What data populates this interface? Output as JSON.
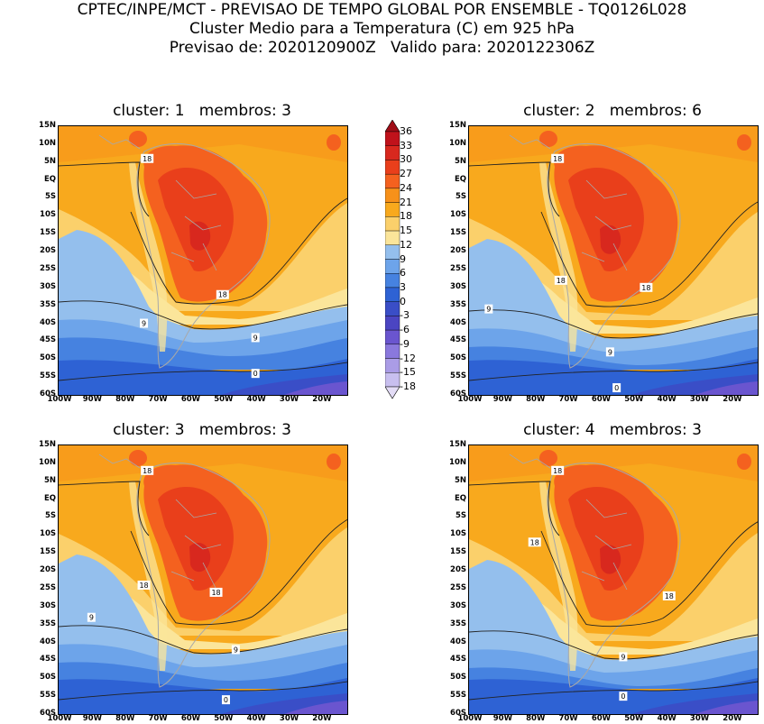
{
  "header": {
    "line1": "CPTEC/INPE/MCT - PREVISAO DE TEMPO GLOBAL POR ENSEMBLE - TQ0126L028",
    "line2": "Cluster Medio para a Temperatura (C) em 925 hPa",
    "line3": "Previsao de: 2020120900Z   Valido para: 2020122306Z"
  },
  "chart_data": [
    {
      "type": "heatmap",
      "title": "cluster: 1   membros: 3",
      "cluster": 1,
      "membros": 3,
      "xticks": [
        "100W",
        "90W",
        "80W",
        "70W",
        "60W",
        "50W",
        "40W",
        "30W",
        "20W"
      ],
      "yticks": [
        "15N",
        "10N",
        "5N",
        "EQ",
        "5S",
        "10S",
        "15S",
        "20S",
        "25S",
        "30S",
        "35S",
        "40S",
        "45S",
        "50S",
        "55S",
        "60S"
      ],
      "xlim": [
        -100,
        -12
      ],
      "ylim": [
        -60,
        15
      ],
      "contour_labels": [
        {
          "text": "18",
          "lon": -73,
          "lat": 6
        },
        {
          "text": "18",
          "lon": -50,
          "lat": -32
        },
        {
          "text": "9",
          "lon": -74,
          "lat": -40
        },
        {
          "text": "9",
          "lon": -40,
          "lat": -44
        },
        {
          "text": "0",
          "lon": -40,
          "lat": -54
        }
      ]
    },
    {
      "type": "heatmap",
      "title": "cluster: 2   membros: 6",
      "cluster": 2,
      "membros": 6,
      "xticks": [
        "100W",
        "90W",
        "80W",
        "70W",
        "60W",
        "50W",
        "40W",
        "30W",
        "20W"
      ],
      "yticks": [
        "15N",
        "10N",
        "5N",
        "EQ",
        "5S",
        "10S",
        "15S",
        "20S",
        "25S",
        "30S",
        "35S",
        "40S",
        "45S",
        "50S",
        "55S",
        "60S"
      ],
      "xlim": [
        -100,
        -12
      ],
      "ylim": [
        -60,
        15
      ],
      "contour_labels": [
        {
          "text": "18",
          "lon": -73,
          "lat": 6
        },
        {
          "text": "18",
          "lon": -72,
          "lat": -28
        },
        {
          "text": "18",
          "lon": -46,
          "lat": -30
        },
        {
          "text": "9",
          "lon": -94,
          "lat": -36
        },
        {
          "text": "9",
          "lon": -57,
          "lat": -48
        },
        {
          "text": "0",
          "lon": -55,
          "lat": -58
        }
      ]
    },
    {
      "type": "heatmap",
      "title": "cluster: 3   membros: 3",
      "cluster": 3,
      "membros": 3,
      "xticks": [
        "100W",
        "90W",
        "80W",
        "70W",
        "60W",
        "50W",
        "40W",
        "30W",
        "20W"
      ],
      "yticks": [
        "15N",
        "10N",
        "5N",
        "EQ",
        "5S",
        "10S",
        "15S",
        "20S",
        "25S",
        "30S",
        "35S",
        "40S",
        "45S",
        "50S",
        "55S",
        "60S"
      ],
      "xlim": [
        -100,
        -12
      ],
      "ylim": [
        -60,
        15
      ],
      "contour_labels": [
        {
          "text": "18",
          "lon": -73,
          "lat": 8
        },
        {
          "text": "18",
          "lon": -74,
          "lat": -24
        },
        {
          "text": "18",
          "lon": -52,
          "lat": -26
        },
        {
          "text": "9",
          "lon": -90,
          "lat": -33
        },
        {
          "text": "9",
          "lon": -46,
          "lat": -42
        },
        {
          "text": "0",
          "lon": -49,
          "lat": -56
        }
      ]
    },
    {
      "type": "heatmap",
      "title": "cluster: 4   membros: 3",
      "cluster": 4,
      "membros": 3,
      "xticks": [
        "100W",
        "90W",
        "80W",
        "70W",
        "60W",
        "50W",
        "40W",
        "30W",
        "20W"
      ],
      "yticks": [
        "15N",
        "10N",
        "5N",
        "EQ",
        "5S",
        "10S",
        "15S",
        "20S",
        "25S",
        "30S",
        "35S",
        "40S",
        "45S",
        "50S",
        "55S",
        "60S"
      ],
      "xlim": [
        -100,
        -12
      ],
      "ylim": [
        -60,
        15
      ],
      "contour_labels": [
        {
          "text": "18",
          "lon": -73,
          "lat": 8
        },
        {
          "text": "18",
          "lon": -80,
          "lat": -12
        },
        {
          "text": "18",
          "lon": -39,
          "lat": -27
        },
        {
          "text": "9",
          "lon": -53,
          "lat": -44
        },
        {
          "text": "0",
          "lon": -53,
          "lat": -55
        }
      ]
    }
  ],
  "legend": {
    "ticks": [
      "36",
      "33",
      "30",
      "27",
      "24",
      "21",
      "18",
      "15",
      "12",
      "9",
      "6",
      "3",
      "0",
      "-3",
      "-6",
      "-9",
      "-12",
      "-15",
      "-18"
    ],
    "colors": [
      "#a00d17",
      "#c0121b",
      "#d8281e",
      "#e93f1b",
      "#f4611f",
      "#f7911a",
      "#f8a91d",
      "#fbd06b",
      "#fbe59a",
      "#94bfed",
      "#6da4ea",
      "#4682e0",
      "#2e62d4",
      "#3a4ec7",
      "#4b45c2",
      "#6a55cf",
      "#8a78dd",
      "#aa9ce6",
      "#c8bfef",
      "#e3dcf6"
    ]
  }
}
